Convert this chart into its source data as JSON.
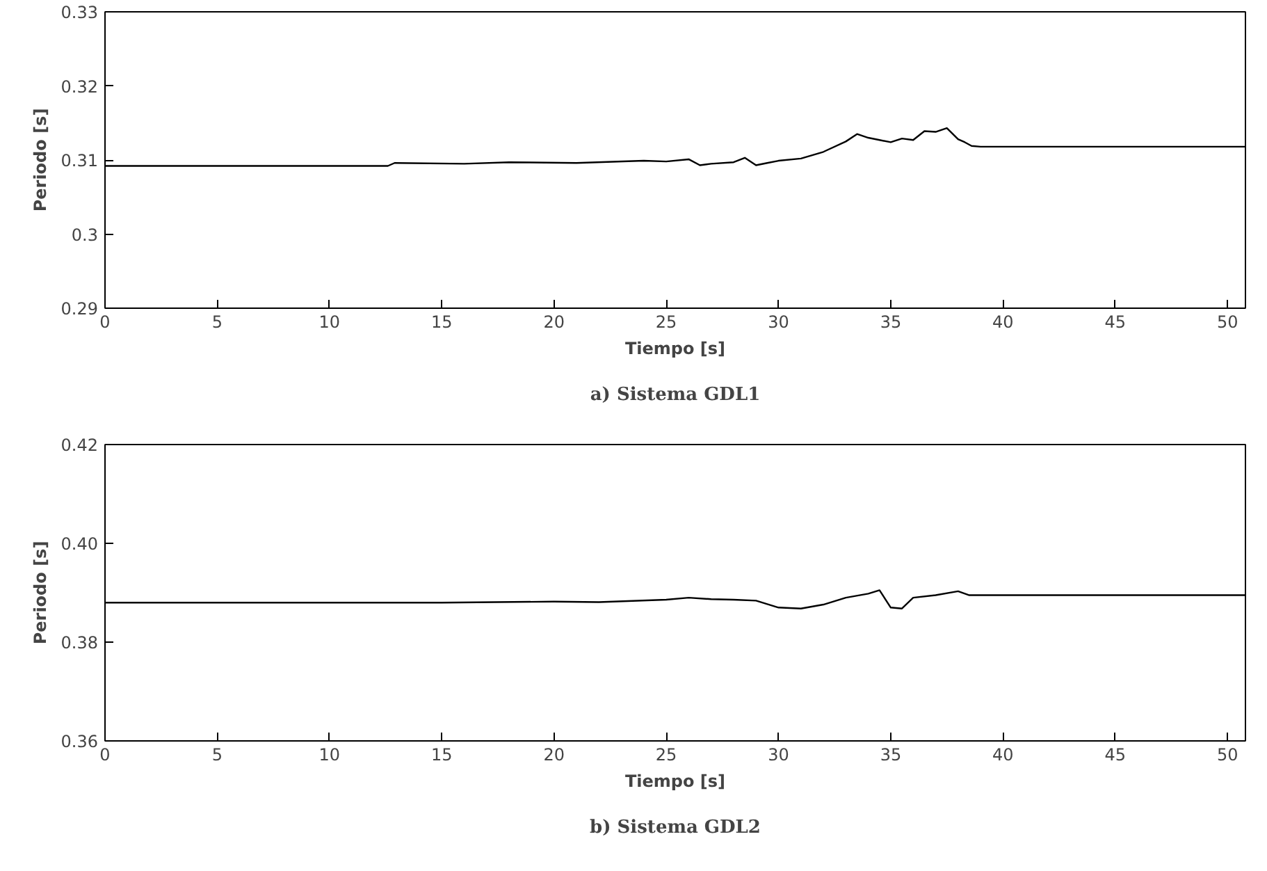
{
  "chart_data": [
    {
      "type": "line",
      "xlabel": "Tiempo [s]",
      "ylabel": "Periodo [s]",
      "annotations": [
        "a) Sistema GDL1"
      ],
      "xlim": [
        0,
        50.8
      ],
      "ylim": [
        0.29,
        0.33
      ],
      "xticks": [
        0,
        5,
        10,
        15,
        20,
        25,
        30,
        35,
        40,
        45,
        50
      ],
      "yticks": [
        0.29,
        0.3,
        0.31,
        0.32,
        0.33
      ],
      "grid": false,
      "series": [
        {
          "color": "#000000",
          "x": [
            0,
            12.6,
            12.9,
            16,
            18,
            21,
            24,
            25,
            26,
            26.5,
            27,
            28,
            28.5,
            29,
            29.5,
            30,
            31,
            32,
            33,
            33.5,
            34,
            34.5,
            35,
            35.5,
            36,
            36.5,
            37,
            37.5,
            38,
            38.3,
            38.6,
            39,
            45,
            50.8
          ],
          "values": [
            0.3092,
            0.3092,
            0.3096,
            0.3095,
            0.3097,
            0.3096,
            0.3099,
            0.3098,
            0.3101,
            0.3093,
            0.3095,
            0.3097,
            0.3103,
            0.3093,
            0.3096,
            0.3099,
            0.3102,
            0.3111,
            0.3125,
            0.3135,
            0.313,
            0.3127,
            0.3124,
            0.3129,
            0.3127,
            0.3139,
            0.3138,
            0.3143,
            0.3128,
            0.3124,
            0.3119,
            0.3118,
            0.3118,
            0.3118
          ]
        }
      ]
    },
    {
      "type": "line",
      "xlabel": "Tiempo [s]",
      "ylabel": "Periodo [s]",
      "annotations": [
        "b) Sistema GDL2"
      ],
      "xlim": [
        0,
        50.8
      ],
      "ylim": [
        0.36,
        0.42
      ],
      "xticks": [
        0,
        5,
        10,
        15,
        20,
        25,
        30,
        35,
        40,
        45,
        50
      ],
      "yticks": [
        {
          "value": 0.36,
          "label": "0.36"
        },
        {
          "value": 0.38,
          "label": "0.38"
        },
        {
          "value": 0.4,
          "label": "0.40"
        },
        {
          "value": 0.42,
          "label": "0.42"
        }
      ],
      "grid": false,
      "series": [
        {
          "color": "#000000",
          "x": [
            0,
            15,
            20,
            22,
            25,
            26,
            27,
            28,
            29,
            30,
            31,
            32,
            33,
            34,
            34.5,
            35,
            35.5,
            36,
            37,
            38,
            38.5,
            45,
            50.8
          ],
          "values": [
            0.388,
            0.388,
            0.3882,
            0.3881,
            0.3886,
            0.389,
            0.3887,
            0.3886,
            0.3884,
            0.387,
            0.3868,
            0.3876,
            0.389,
            0.3898,
            0.3905,
            0.387,
            0.3868,
            0.389,
            0.3895,
            0.3903,
            0.3895,
            0.3895,
            0.3895
          ]
        }
      ]
    }
  ]
}
